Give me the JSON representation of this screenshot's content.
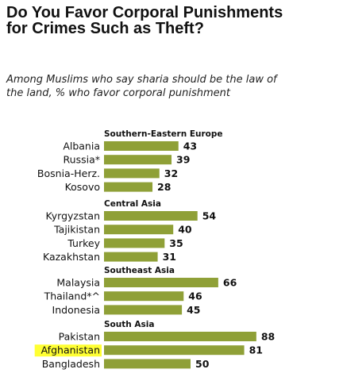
{
  "title": "Do You Favor Corporal Punishments for Crimes Such as Theft?",
  "subtitle": "Among Muslims who say sharia should be the law of the land, % who favor corporal punishment",
  "colors": {
    "bar": "#8fa037",
    "highlight": "#ffff33"
  },
  "chart_data": {
    "type": "bar",
    "orientation": "horizontal",
    "title": "Do You Favor Corporal Punishments for Crimes Such as Theft?",
    "subtitle": "Among Muslims who say sharia should be the law of the land, % who favor corporal punishment",
    "xlim": [
      0,
      100
    ],
    "grid": false,
    "groups": [
      {
        "region": "Southern-Eastern  Europe",
        "categories": [
          "Albania",
          "Russia*",
          "Bosnia-Herz.",
          "Kosovo"
        ],
        "values": [
          43,
          39,
          32,
          28
        ]
      },
      {
        "region": "Central Asia",
        "categories": [
          "Kyrgyzstan",
          "Tajikistan",
          "Turkey",
          "Kazakhstan"
        ],
        "values": [
          54,
          40,
          35,
          31
        ]
      },
      {
        "region": "Southeast  Asia",
        "categories": [
          "Malaysia",
          "Thailand*^",
          "Indonesia"
        ],
        "values": [
          66,
          46,
          45
        ]
      },
      {
        "region": "South Asia",
        "categories": [
          "Pakistan",
          "Afghanistan",
          "Bangladesh"
        ],
        "values": [
          88,
          81,
          50
        ],
        "highlighted": [
          "Afghanistan"
        ]
      }
    ]
  }
}
